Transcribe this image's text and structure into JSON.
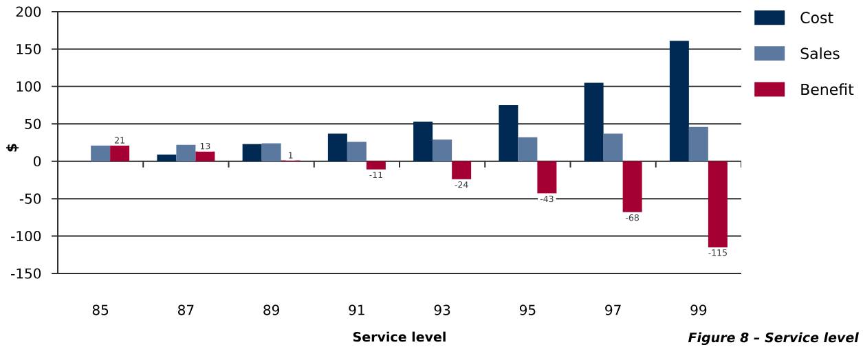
{
  "chart_data": {
    "type": "bar",
    "xlabel": "Service level",
    "ylabel": "$",
    "categories": [
      "85",
      "87",
      "89",
      "91",
      "93",
      "95",
      "97",
      "99"
    ],
    "series": [
      {
        "name": "Cost",
        "color": "#002a54",
        "values": [
          null,
          9,
          23,
          37,
          53,
          75,
          105,
          161
        ]
      },
      {
        "name": "Sales",
        "color": "#5b789e",
        "values": [
          21,
          22,
          24,
          26,
          29,
          32,
          37,
          46
        ]
      },
      {
        "name": "Benefit",
        "color": "#a50034",
        "values": [
          21,
          13,
          1,
          -11,
          -24,
          -43,
          -68,
          -115
        ],
        "value_labels": [
          "21",
          "13",
          "1",
          "-11",
          "-24",
          "-43",
          "-68",
          "-115"
        ]
      }
    ],
    "ylim": [
      -150,
      200
    ],
    "yticks": [
      -150,
      -100,
      -50,
      0,
      50,
      100,
      150,
      200
    ],
    "grid": "y",
    "legend": "top right",
    "annotations": [
      "Figure 8 – Service level"
    ]
  }
}
